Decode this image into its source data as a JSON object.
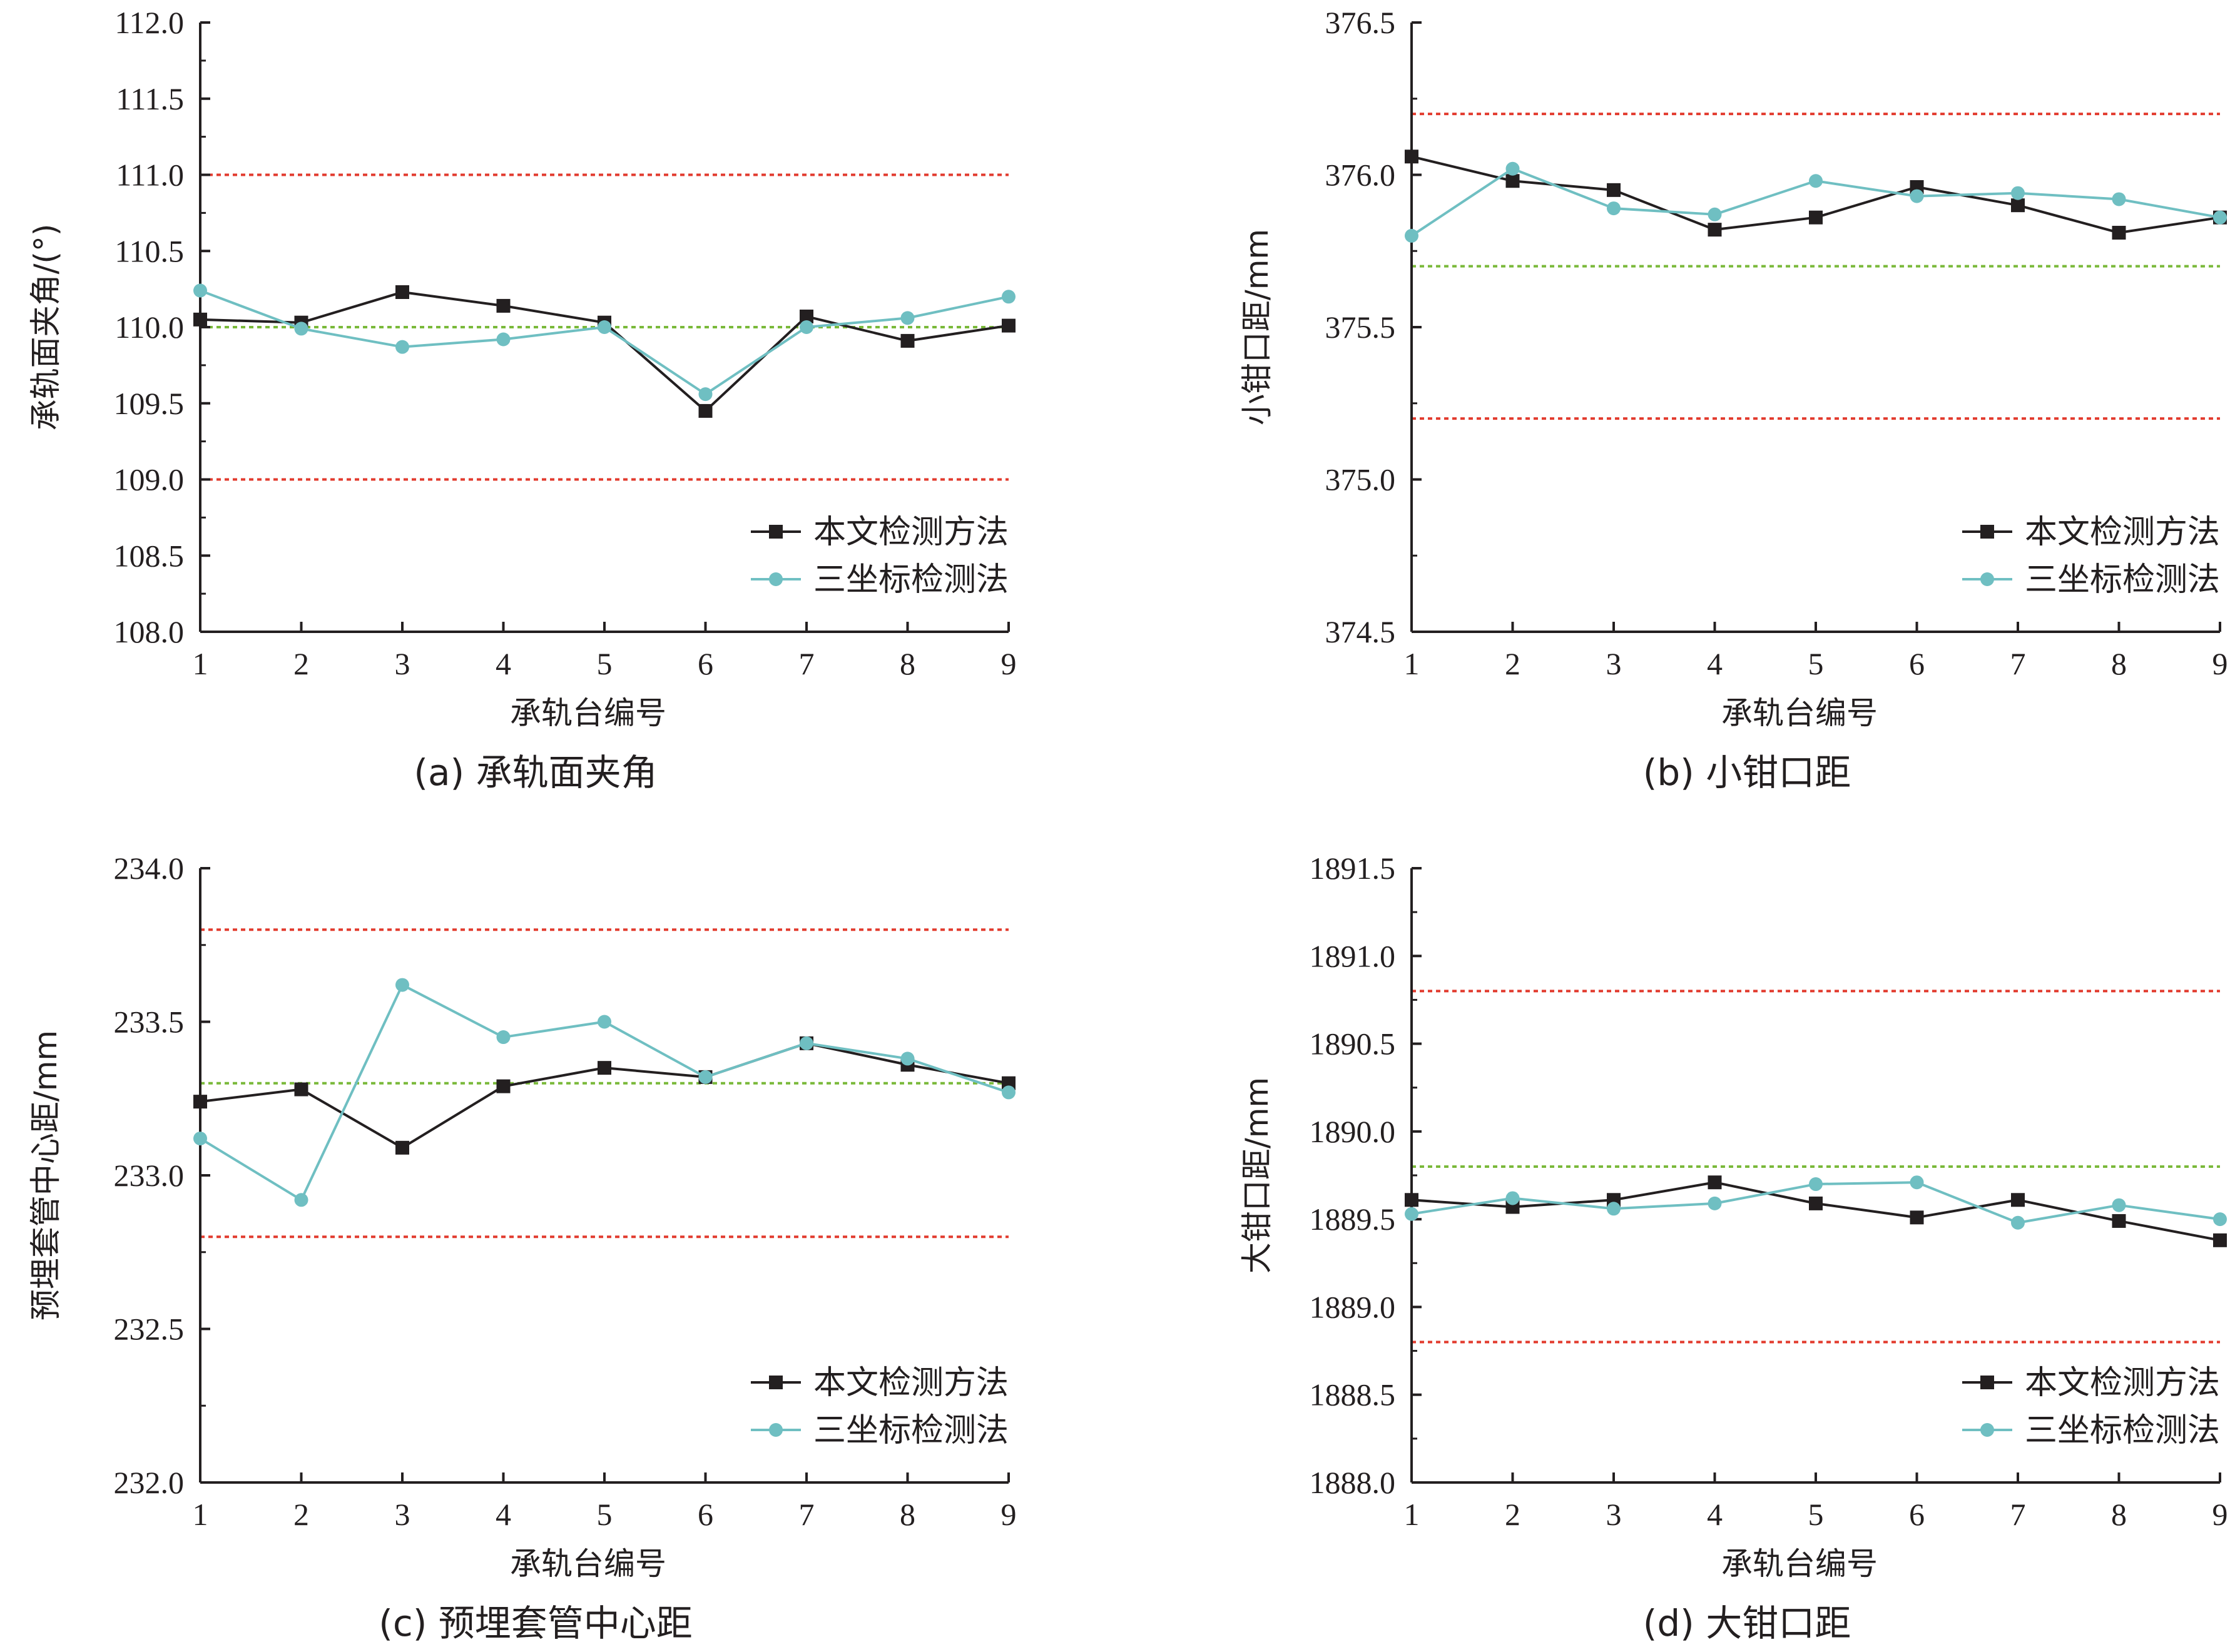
{
  "colors": {
    "axis": "#231f20",
    "series_method": "#231f20",
    "series_cmm": "#6fbfc2",
    "limit_line": "#e23b2e",
    "nominal_line": "#7ab93a"
  },
  "chart_data": [
    {
      "id": "a",
      "type": "line",
      "caption": "(a)  承轨面夹角",
      "xlabel": "承轨台编号",
      "ylabel": "承轨面夹角/(°)",
      "x": [
        1,
        2,
        3,
        4,
        5,
        6,
        7,
        8,
        9
      ],
      "xlim": [
        1,
        9
      ],
      "ylim": [
        108.0,
        112.0
      ],
      "yticks": [
        "108.0",
        "108.5",
        "109.0",
        "109.5",
        "110.0",
        "110.5",
        "111.0",
        "111.5",
        "112.0"
      ],
      "reference_lines": {
        "limits": [
          111.0,
          109.0
        ],
        "nominal": 110.0
      },
      "series": [
        {
          "name": "本文检测方法",
          "values": [
            110.05,
            110.03,
            110.23,
            110.14,
            110.03,
            109.45,
            110.07,
            109.91,
            110.01
          ]
        },
        {
          "name": "三坐标检测法",
          "values": [
            110.24,
            109.99,
            109.87,
            109.92,
            110.0,
            109.56,
            110.0,
            110.06,
            110.2
          ]
        }
      ]
    },
    {
      "id": "b",
      "type": "line",
      "caption": "(b)  小钳口距",
      "xlabel": "承轨台编号",
      "ylabel": "小钳口距/mm",
      "x": [
        1,
        2,
        3,
        4,
        5,
        6,
        7,
        8,
        9
      ],
      "xlim": [
        1,
        9
      ],
      "ylim": [
        374.5,
        376.5
      ],
      "yticks": [
        "374.5",
        "375.0",
        "375.5",
        "376.0",
        "376.5"
      ],
      "reference_lines": {
        "limits": [
          376.2,
          375.2
        ],
        "nominal": 375.7
      },
      "series": [
        {
          "name": "本文检测方法",
          "values": [
            376.06,
            375.98,
            375.95,
            375.82,
            375.86,
            375.96,
            375.9,
            375.81,
            375.86
          ]
        },
        {
          "name": "三坐标检测法",
          "values": [
            375.8,
            376.02,
            375.89,
            375.87,
            375.98,
            375.93,
            375.94,
            375.92,
            375.86
          ]
        }
      ]
    },
    {
      "id": "c",
      "type": "line",
      "caption": "(c)  预埋套管中心距",
      "xlabel": "承轨台编号",
      "ylabel": "预埋套管中心距/mm",
      "x": [
        1,
        2,
        3,
        4,
        5,
        6,
        7,
        8,
        9
      ],
      "xlim": [
        1,
        9
      ],
      "ylim": [
        232.0,
        234.0
      ],
      "yticks": [
        "232.0",
        "232.5",
        "233.0",
        "233.5",
        "234.0"
      ],
      "reference_lines": {
        "limits": [
          233.8,
          232.8
        ],
        "nominal": 233.3
      },
      "series": [
        {
          "name": "本文检测方法",
          "values": [
            233.24,
            233.28,
            233.09,
            233.29,
            233.35,
            233.32,
            233.43,
            233.36,
            233.3
          ]
        },
        {
          "name": "三坐标检测法",
          "values": [
            233.12,
            232.92,
            233.62,
            233.45,
            233.5,
            233.32,
            233.43,
            233.38,
            233.27
          ]
        }
      ]
    },
    {
      "id": "d",
      "type": "line",
      "caption": "(d)  大钳口距",
      "xlabel": "承轨台编号",
      "ylabel": "大钳口距/mm",
      "x": [
        1,
        2,
        3,
        4,
        5,
        6,
        7,
        8,
        9
      ],
      "xlim": [
        1,
        9
      ],
      "ylim": [
        1888.0,
        1891.5
      ],
      "yticks": [
        "1888.0",
        "1888.5",
        "1889.0",
        "1889.5",
        "1890.0",
        "1890.5",
        "1891.0",
        "1891.5"
      ],
      "reference_lines": {
        "limits": [
          1890.8,
          1888.8
        ],
        "nominal": 1889.8
      },
      "series": [
        {
          "name": "本文检测方法",
          "values": [
            1889.61,
            1889.57,
            1889.61,
            1889.71,
            1889.59,
            1889.51,
            1889.61,
            1889.49,
            1889.38
          ]
        },
        {
          "name": "三坐标检测法",
          "values": [
            1889.53,
            1889.62,
            1889.56,
            1889.59,
            1889.7,
            1889.71,
            1889.48,
            1889.58,
            1889.5
          ]
        }
      ]
    }
  ]
}
